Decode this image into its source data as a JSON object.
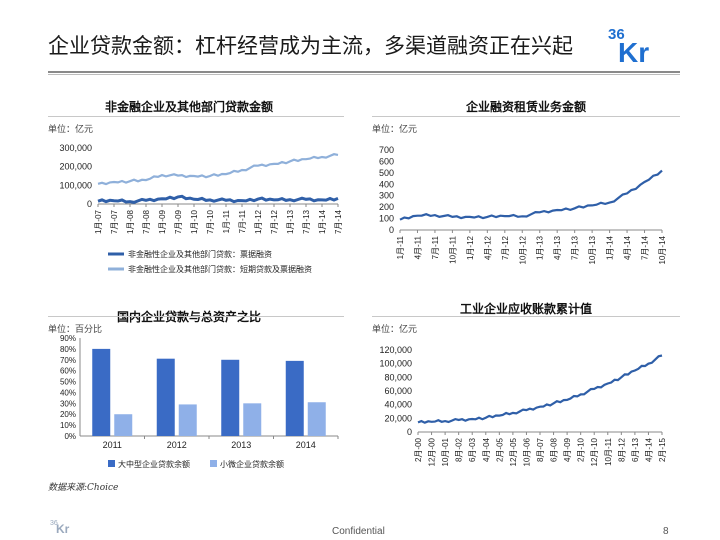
{
  "slide": {
    "title": "企业贷款金额：杠杆经营成为主流，多渠道融资正在兴起",
    "source": "数据来源:Choice",
    "footer_center": "Confidential",
    "page_number": "8",
    "logo_text": "36Kr"
  },
  "chart_data": [
    {
      "id": "nonfin",
      "type": "line",
      "title": "非金融企业及其他部门贷款金额",
      "unit": "单位：亿元",
      "ylim": [
        0,
        300000
      ],
      "yticks": [
        "300,000",
        "200,000",
        "100,000",
        "0"
      ],
      "x": [
        "1月-07",
        "7月-07",
        "1月-08",
        "7月-08",
        "1月-09",
        "7月-09",
        "1月-10",
        "7月-10",
        "1月-11",
        "7月-11",
        "1月-12",
        "7月-12",
        "1月-13",
        "7月-13",
        "1月-14",
        "7月-14"
      ],
      "series": [
        {
          "name": "非金融性企业及其他部门贷款：票据融资",
          "color": "#2f5fa8",
          "values": [
            15000,
            17000,
            13000,
            20000,
            28000,
            38000,
            25000,
            22000,
            20000,
            18000,
            26000,
            22000,
            23000,
            25000,
            22000,
            30000
          ]
        },
        {
          "name": "非金融性企业及其他部门贷款：短期贷款及票据融资",
          "color": "#8fb0da",
          "values": [
            108000,
            118000,
            122000,
            128000,
            155000,
            152000,
            150000,
            150000,
            160000,
            182000,
            205000,
            215000,
            228000,
            240000,
            252000,
            263000
          ]
        }
      ],
      "legend": "bottom"
    },
    {
      "id": "leasing",
      "type": "line",
      "title": "企业融资租赁业务金额",
      "unit": "单位：亿元",
      "ylim": [
        0,
        700
      ],
      "yticks": [
        "700",
        "600",
        "500",
        "400",
        "300",
        "200",
        "100",
        "0"
      ],
      "x": [
        "1月-11",
        "4月-11",
        "7月-11",
        "10月-11",
        "1月-12",
        "4月-12",
        "7月-12",
        "10月-12",
        "1月-13",
        "4月-13",
        "7月-13",
        "10月-13",
        "1月-14",
        "4月-14",
        "7月-14",
        "10月-14"
      ],
      "series": [
        {
          "name": "",
          "color": "#2f5fa8",
          "values": [
            90,
            125,
            130,
            115,
            115,
            115,
            122,
            120,
            155,
            175,
            190,
            215,
            240,
            320,
            420,
            520
          ]
        }
      ]
    },
    {
      "id": "ratio",
      "type": "bar",
      "title": "国内企业贷款与总资产之比",
      "unit": "单位：百分比",
      "ylim": [
        0,
        90
      ],
      "yticks": [
        "90%",
        "80%",
        "70%",
        "60%",
        "50%",
        "40%",
        "30%",
        "20%",
        "10%",
        "0%"
      ],
      "categories": [
        "2011",
        "2012",
        "2013",
        "2014"
      ],
      "series": [
        {
          "name": "大中型企业贷款余额",
          "color": "#3a6bc5",
          "values": [
            80,
            71,
            70,
            69
          ]
        },
        {
          "name": "小微企业贷款余额",
          "color": "#8fb0e8",
          "values": [
            20,
            29,
            30,
            31
          ]
        }
      ],
      "legend": "bottom"
    },
    {
      "id": "receivable",
      "type": "line",
      "title": "工业企业应收账款累计值",
      "unit": "单位：亿元",
      "ylim": [
        0,
        120000
      ],
      "yticks": [
        "120,000",
        "100,000",
        "80,000",
        "60,000",
        "40,000",
        "20,000",
        "0"
      ],
      "x": [
        "2月-00",
        "12月-00",
        "10月-01",
        "8月-02",
        "6月-03",
        "4月-04",
        "2月-05",
        "12月-05",
        "10月-06",
        "8月-07",
        "6月-08",
        "4月-09",
        "2月-10",
        "12月-10",
        "10月-11",
        "8月-12",
        "6月-13",
        "4月-14",
        "2月-15"
      ],
      "series": [
        {
          "name": "",
          "color": "#2f5fa8",
          "values": [
            14000,
            15000,
            16000,
            17500,
            19000,
            21000,
            24000,
            28000,
            32000,
            37000,
            42000,
            47000,
            55000,
            63000,
            71000,
            80000,
            90000,
            100000,
            112000
          ]
        }
      ]
    }
  ]
}
